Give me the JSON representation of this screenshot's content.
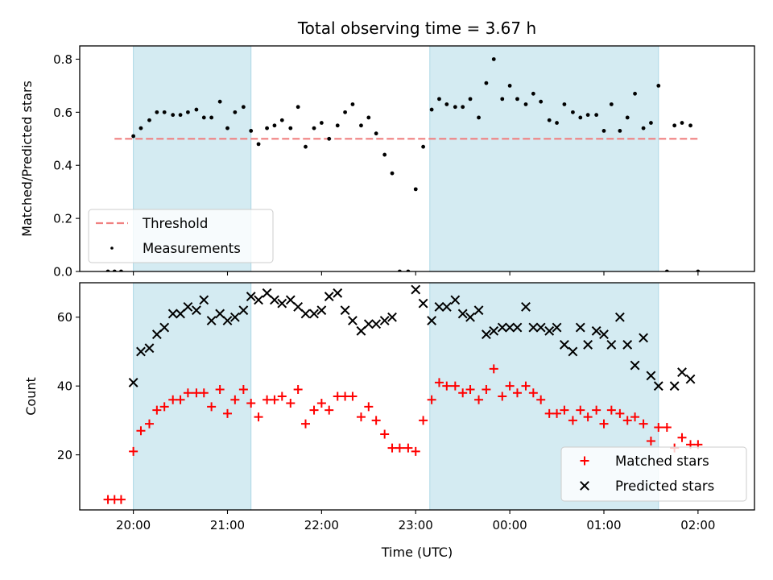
{
  "chart_data": {
    "type": "scatter",
    "title": "Total observing time = 3.67 h",
    "xlabel": "Time (UTC)",
    "x_unit": "hours UTC (values past 24 are after midnight)",
    "xlim": [
      19.43,
      26.6
    ],
    "xticks": [
      {
        "v": 20,
        "label": "20:00"
      },
      {
        "v": 21,
        "label": "21:00"
      },
      {
        "v": 22,
        "label": "22:00"
      },
      {
        "v": 23,
        "label": "23:00"
      },
      {
        "v": 24,
        "label": "00:00"
      },
      {
        "v": 25,
        "label": "01:00"
      },
      {
        "v": 26,
        "label": "02:00"
      }
    ],
    "shaded_intervals": [
      [
        20.0,
        21.25
      ],
      [
        23.15,
        25.58
      ]
    ],
    "shade_color": "#add8e6",
    "panels": [
      {
        "id": "ratio",
        "ylabel": "Matched/Predicted stars",
        "ylim": [
          0,
          0.85
        ],
        "yticks": [
          {
            "v": 0.0,
            "label": "0.0"
          },
          {
            "v": 0.2,
            "label": "0.2"
          },
          {
            "v": 0.4,
            "label": "0.4"
          },
          {
            "v": 0.6,
            "label": "0.6"
          },
          {
            "v": 0.8,
            "label": "0.8"
          }
        ],
        "legend": {
          "position": "lower left",
          "entries": [
            "Threshold",
            "Measurements"
          ]
        },
        "series": [
          {
            "name": "Threshold",
            "kind": "line",
            "style": "dashed",
            "color": "#f08080",
            "x": [
              19.8,
              26.0
            ],
            "y": [
              0.5,
              0.5
            ]
          },
          {
            "name": "Measurements",
            "kind": "points",
            "marker": "dot",
            "color": "#000000",
            "x": [
              19.73,
              19.8,
              19.87,
              20.0,
              20.08,
              20.17,
              20.25,
              20.33,
              20.42,
              20.5,
              20.58,
              20.67,
              20.75,
              20.83,
              20.92,
              21.0,
              21.08,
              21.17,
              21.25,
              21.33,
              21.42,
              21.5,
              21.58,
              21.67,
              21.75,
              21.83,
              21.92,
              22.0,
              22.08,
              22.17,
              22.25,
              22.33,
              22.42,
              22.5,
              22.58,
              22.67,
              22.75,
              22.83,
              22.92,
              23.0,
              23.08,
              23.17,
              23.25,
              23.33,
              23.42,
              23.5,
              23.58,
              23.67,
              23.75,
              23.83,
              23.92,
              24.0,
              24.08,
              24.17,
              24.25,
              24.33,
              24.42,
              24.5,
              24.58,
              24.67,
              24.75,
              24.83,
              24.92,
              25.0,
              25.08,
              25.17,
              25.25,
              25.33,
              25.42,
              25.5,
              25.58,
              25.67,
              25.75,
              25.83,
              25.92,
              26.0
            ],
            "y": [
              0,
              0,
              0,
              0.51,
              0.54,
              0.57,
              0.6,
              0.6,
              0.59,
              0.59,
              0.6,
              0.61,
              0.58,
              0.58,
              0.64,
              0.54,
              0.6,
              0.62,
              0.53,
              0.48,
              0.54,
              0.55,
              0.57,
              0.54,
              0.62,
              0.47,
              0.54,
              0.56,
              0.5,
              0.55,
              0.6,
              0.63,
              0.55,
              0.58,
              0.52,
              0.44,
              0.37,
              0,
              0,
              0.31,
              0.47,
              0.61,
              0.65,
              0.63,
              0.62,
              0.62,
              0.65,
              0.58,
              0.71,
              0.8,
              0.65,
              0.7,
              0.65,
              0.63,
              0.67,
              0.64,
              0.57,
              0.56,
              0.63,
              0.6,
              0.58,
              0.59,
              0.59,
              0.53,
              0.63,
              0.53,
              0.58,
              0.67,
              0.54,
              0.56,
              0.7,
              0,
              0.55,
              0.56,
              0.55,
              0
            ]
          }
        ]
      },
      {
        "id": "count",
        "ylabel": "Count",
        "ylim": [
          4,
          70
        ],
        "yticks": [
          {
            "v": 20,
            "label": "20"
          },
          {
            "v": 40,
            "label": "40"
          },
          {
            "v": 60,
            "label": "60"
          }
        ],
        "legend": {
          "position": "lower right",
          "entries": [
            "Matched stars",
            "Predicted stars"
          ]
        },
        "series": [
          {
            "name": "Matched stars",
            "kind": "points",
            "marker": "plus",
            "color": "#ff0000",
            "x": [
              19.73,
              19.8,
              19.87,
              20.0,
              20.08,
              20.17,
              20.25,
              20.33,
              20.42,
              20.5,
              20.58,
              20.67,
              20.75,
              20.83,
              20.92,
              21.0,
              21.08,
              21.17,
              21.25,
              21.33,
              21.42,
              21.5,
              21.58,
              21.67,
              21.75,
              21.83,
              21.92,
              22.0,
              22.08,
              22.17,
              22.25,
              22.33,
              22.42,
              22.5,
              22.58,
              22.67,
              22.75,
              22.83,
              22.92,
              23.0,
              23.08,
              23.17,
              23.25,
              23.33,
              23.42,
              23.5,
              23.58,
              23.67,
              23.75,
              23.83,
              23.92,
              24.0,
              24.08,
              24.17,
              24.25,
              24.33,
              24.42,
              24.5,
              24.58,
              24.67,
              24.75,
              24.83,
              24.92,
              25.0,
              25.08,
              25.17,
              25.25,
              25.33,
              25.42,
              25.5,
              25.58,
              25.67,
              25.75,
              25.83,
              25.92,
              26.0
            ],
            "y": [
              7,
              7,
              7,
              21,
              27,
              29,
              33,
              34,
              36,
              36,
              38,
              38,
              38,
              34,
              39,
              32,
              36,
              39,
              35,
              31,
              36,
              36,
              37,
              35,
              39,
              29,
              33,
              35,
              33,
              37,
              37,
              37,
              31,
              34,
              30,
              26,
              22,
              22,
              22,
              21,
              30,
              36,
              41,
              40,
              40,
              38,
              39,
              36,
              39,
              45,
              37,
              40,
              38,
              40,
              38,
              36,
              32,
              32,
              33,
              30,
              33,
              31,
              33,
              29,
              33,
              32,
              30,
              31,
              29,
              24,
              28,
              28,
              22,
              25,
              23,
              23
            ]
          },
          {
            "name": "Predicted stars",
            "kind": "points",
            "marker": "cross",
            "color": "#000000",
            "x": [
              20.0,
              20.08,
              20.17,
              20.25,
              20.33,
              20.42,
              20.5,
              20.58,
              20.67,
              20.75,
              20.83,
              20.92,
              21.0,
              21.08,
              21.17,
              21.25,
              21.33,
              21.42,
              21.5,
              21.58,
              21.67,
              21.75,
              21.83,
              21.92,
              22.0,
              22.08,
              22.17,
              22.25,
              22.33,
              22.42,
              22.5,
              22.58,
              22.67,
              22.75,
              23.0,
              23.08,
              23.17,
              23.25,
              23.33,
              23.42,
              23.5,
              23.58,
              23.67,
              23.75,
              23.83,
              23.92,
              24.0,
              24.08,
              24.17,
              24.25,
              24.33,
              24.42,
              24.5,
              24.58,
              24.67,
              24.75,
              24.83,
              24.92,
              25.0,
              25.08,
              25.17,
              25.25,
              25.33,
              25.42,
              25.5,
              25.58,
              25.75,
              25.83,
              25.92
            ],
            "y": [
              41,
              50,
              51,
              55,
              57,
              61,
              61,
              63,
              62,
              65,
              59,
              61,
              59,
              60,
              62,
              66,
              65,
              67,
              65,
              64,
              65,
              63,
              61,
              61,
              62,
              66,
              67,
              62,
              59,
              56,
              58,
              58,
              59,
              60,
              68,
              64,
              59,
              63,
              63,
              65,
              61,
              60,
              62,
              55,
              56,
              57,
              57,
              57,
              63,
              57,
              57,
              56,
              57,
              52,
              50,
              57,
              52,
              56,
              55,
              52,
              60,
              52,
              46,
              54,
              43,
              40,
              40,
              44,
              42
            ]
          }
        ]
      }
    ]
  }
}
